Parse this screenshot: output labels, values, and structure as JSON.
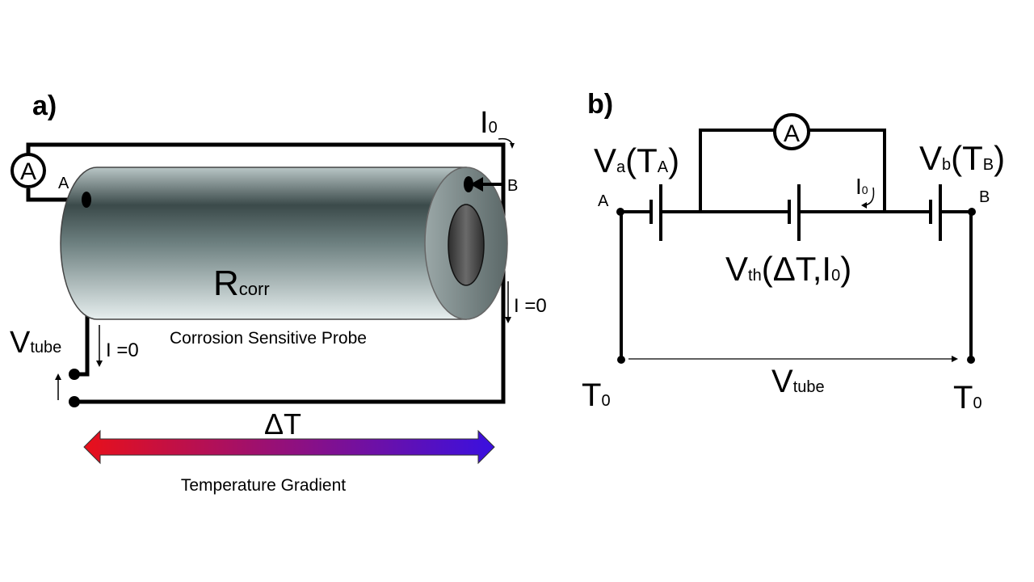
{
  "panel_a": {
    "label": "a)",
    "ammeter": "A",
    "node_a": "A",
    "node_b": "B",
    "current_main": "I",
    "current_main_sub": "0",
    "r_main": "R",
    "r_sub": "corr",
    "probe_caption": "Corrosion Sensitive Probe",
    "v_main": "V",
    "v_sub": "tube",
    "i_zero_left": "I =0",
    "i_zero_right": "I =0",
    "delta_t": "ΔT",
    "gradient_caption": "Temperature Gradient",
    "gradient_colors": {
      "hot": "#e8101a",
      "cold": "#3a10e0"
    }
  },
  "panel_b": {
    "label": "b)",
    "ammeter": "A",
    "va": "V",
    "va_sub": "a",
    "ta_open": "(T",
    "ta_sub": "A",
    "ta_close": ")",
    "vb": "V",
    "vb_sub": "b",
    "tb_open": "(T",
    "tb_sub": "B",
    "tb_close": ")",
    "current": "I",
    "current_sub": "0",
    "node_a": "A",
    "node_b": "B",
    "vth": "V",
    "vth_sub": "th",
    "vth_args_1": "(ΔT,I",
    "vth_args_sub": "0",
    "vth_args_2": ")",
    "t0_left": "T",
    "t0_left_sub": "0",
    "t0_right": "T",
    "t0_right_sub": "0",
    "vtube": "V",
    "vtube_sub": "tube"
  }
}
